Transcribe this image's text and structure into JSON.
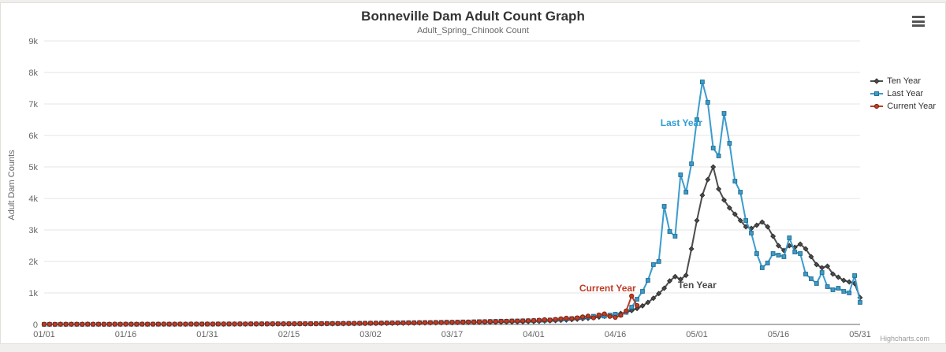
{
  "header": {
    "title": "Bonneville Dam Adult Count Graph",
    "subtitle": "Adult_Spring_Chinook Count"
  },
  "credits": {
    "label": "Highcharts.com"
  },
  "colors": {
    "ten_year": "#4d4d4d",
    "last_year": "#3b9cce",
    "current_year": "#bf3c26",
    "grid": "#e6e6e6",
    "axis_line": "#666666",
    "axis_label": "#666666",
    "title_text": "#333333"
  },
  "chart_data": {
    "type": "line",
    "title": "Bonneville Dam Adult Count Graph",
    "subtitle": "Adult_Spring_Chinook Count",
    "xlabel": "",
    "ylabel": "Adult Dam Counts",
    "ylim": [
      0,
      9000
    ],
    "yticks": [
      0,
      1000,
      2000,
      3000,
      4000,
      5000,
      6000,
      7000,
      8000,
      9000
    ],
    "ytick_labels": [
      "0",
      "1k",
      "2k",
      "3k",
      "4k",
      "5k",
      "6k",
      "7k",
      "8k",
      "9k"
    ],
    "x_day_range": [
      0,
      150
    ],
    "grid": "horizontal",
    "legend_position": "right",
    "xticks": [
      {
        "day": 0,
        "label": "01/01"
      },
      {
        "day": 15,
        "label": "01/16"
      },
      {
        "day": 30,
        "label": "01/31"
      },
      {
        "day": 45,
        "label": "02/15"
      },
      {
        "day": 60,
        "label": "03/02"
      },
      {
        "day": 75,
        "label": "03/17"
      },
      {
        "day": 90,
        "label": "04/01"
      },
      {
        "day": 105,
        "label": "04/16"
      },
      {
        "day": 120,
        "label": "05/01"
      },
      {
        "day": 135,
        "label": "05/16"
      },
      {
        "day": 150,
        "label": "05/31"
      }
    ],
    "series": [
      {
        "name": "Ten Year",
        "color": "#4d4d4d",
        "marker": "diamond",
        "marker_stroke": "#2e2e2e",
        "start_day": 0,
        "values": [
          4,
          5,
          4,
          6,
          5,
          7,
          6,
          5,
          8,
          6,
          7,
          5,
          6,
          8,
          7,
          6,
          9,
          7,
          8,
          6,
          7,
          9,
          8,
          7,
          10,
          8,
          9,
          11,
          9,
          10,
          12,
          10,
          12,
          11,
          13,
          12,
          14,
          13,
          15,
          14,
          16,
          15,
          17,
          16,
          18,
          17,
          19,
          18,
          20,
          19,
          21,
          22,
          24,
          23,
          25,
          26,
          28,
          27,
          30,
          32,
          34,
          33,
          36,
          38,
          37,
          40,
          42,
          44,
          43,
          46,
          48,
          50,
          49,
          52,
          55,
          54,
          58,
          60,
          63,
          62,
          66,
          68,
          72,
          70,
          75,
          78,
          82,
          80,
          85,
          90,
          95,
          100,
          108,
          115,
          122,
          130,
          140,
          152,
          165,
          180,
          195,
          215,
          235,
          258,
          285,
          315,
          350,
          390,
          440,
          505,
          590,
          700,
          830,
          980,
          1150,
          1380,
          1520,
          1430,
          1560,
          2400,
          3300,
          4100,
          4600,
          5000,
          4300,
          3950,
          3700,
          3500,
          3300,
          3100,
          3050,
          3150,
          3250,
          3100,
          2800,
          2500,
          2350,
          2500,
          2450,
          2550,
          2400,
          2150,
          1900,
          1800,
          1850,
          1600,
          1500,
          1400,
          1350,
          1300,
          850
        ]
      },
      {
        "name": "Last Year",
        "color": "#3b9cce",
        "marker": "square",
        "marker_stroke": "#27708f",
        "start_day": 0,
        "values": [
          3,
          4,
          3,
          5,
          4,
          6,
          5,
          4,
          6,
          5,
          7,
          6,
          5,
          7,
          6,
          8,
          7,
          6,
          8,
          7,
          9,
          8,
          10,
          9,
          8,
          10,
          9,
          11,
          10,
          12,
          11,
          12,
          14,
          13,
          15,
          14,
          16,
          15,
          17,
          16,
          18,
          17,
          19,
          20,
          18,
          21,
          20,
          22,
          24,
          23,
          25,
          26,
          28,
          30,
          29,
          32,
          34,
          33,
          36,
          38,
          40,
          42,
          44,
          46,
          48,
          50,
          53,
          56,
          54,
          58,
          62,
          60,
          65,
          68,
          72,
          70,
          75,
          80,
          78,
          85,
          90,
          88,
          95,
          100,
          105,
          102,
          110,
          112,
          115,
          118,
          120,
          125,
          132,
          140,
          150,
          160,
          172,
          185,
          200,
          215,
          235,
          260,
          285,
          265,
          295,
          325,
          300,
          385,
          550,
          800,
          1050,
          1400,
          1900,
          2000,
          3750,
          2950,
          2800,
          4750,
          4200,
          5100,
          6500,
          7700,
          7050,
          5600,
          5350,
          6700,
          5750,
          4550,
          4200,
          3300,
          2900,
          2250,
          1800,
          1950,
          2250,
          2200,
          2150,
          2750,
          2300,
          2250,
          1600,
          1450,
          1300,
          1650,
          1200,
          1100,
          1150,
          1050,
          1000,
          1550,
          700
        ]
      },
      {
        "name": "Current Year",
        "color": "#bf3c26",
        "marker": "circle",
        "marker_stroke": "#7e2413",
        "start_day": 0,
        "values": [
          5,
          6,
          5,
          7,
          6,
          8,
          7,
          6,
          9,
          7,
          8,
          6,
          7,
          9,
          8,
          10,
          9,
          8,
          10,
          9,
          11,
          10,
          12,
          11,
          10,
          12,
          11,
          13,
          12,
          14,
          13,
          14,
          16,
          15,
          17,
          16,
          18,
          17,
          19,
          18,
          20,
          19,
          21,
          20,
          22,
          21,
          23,
          25,
          24,
          26,
          25,
          28,
          27,
          30,
          29,
          32,
          31,
          34,
          36,
          38,
          40,
          42,
          41,
          44,
          46,
          48,
          47,
          50,
          53,
          56,
          54,
          58,
          62,
          60,
          65,
          70,
          68,
          75,
          80,
          78,
          85,
          90,
          95,
          92,
          100,
          105,
          110,
          108,
          115,
          120,
          125,
          135,
          150,
          140,
          160,
          180,
          200,
          185,
          210,
          240,
          265,
          210,
          300,
          335,
          255,
          225,
          290,
          430,
          900,
          600
        ]
      }
    ],
    "annotations": [
      {
        "text": "Last Year",
        "color": "#2f9cd3",
        "day": 121,
        "value": 6400,
        "anchor": "end"
      },
      {
        "text": "Ten Year",
        "color": "#4a4a4a",
        "day": 116.5,
        "value": 1250,
        "anchor": "start"
      },
      {
        "text": "Current Year",
        "color": "#bf3c26",
        "day": 108.8,
        "value": 1150,
        "anchor": "end"
      }
    ]
  }
}
